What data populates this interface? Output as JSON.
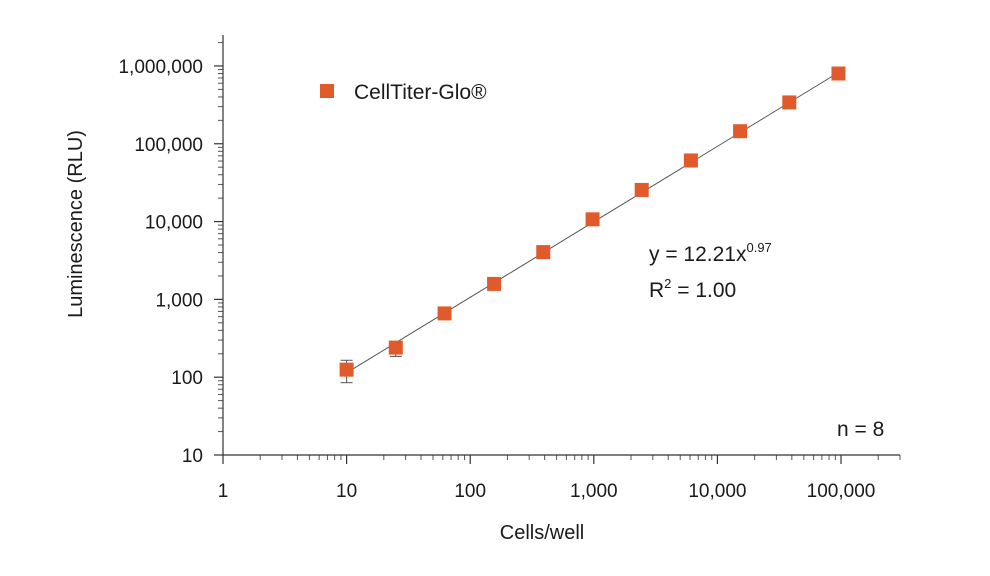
{
  "chart_data": {
    "type": "scatter",
    "x_scale": "log",
    "y_scale": "log",
    "xlabel": "Cells/well",
    "ylabel": "Luminescence (RLU)",
    "xlim": [
      1,
      300000
    ],
    "ylim": [
      10,
      2500000
    ],
    "x_ticks": [
      1,
      10,
      100,
      1000,
      10000,
      100000
    ],
    "x_tick_labels": [
      "1",
      "10",
      "100",
      "1,000",
      "10,000",
      "100,000"
    ],
    "y_ticks": [
      10,
      100,
      1000,
      10000,
      100000,
      1000000
    ],
    "y_tick_labels": [
      "10",
      "100",
      "1,000",
      "10,000",
      "100,000",
      "1,000,000"
    ],
    "series": [
      {
        "name": "CellTiter-Glo®",
        "color": "#e05a2b",
        "marker": "square",
        "x": [
          10,
          25,
          62,
          156,
          390,
          977,
          2441,
          6103,
          15259,
          38147,
          95367
        ],
        "y": [
          125,
          240,
          660,
          1580,
          4050,
          10700,
          25500,
          61000,
          145000,
          340000,
          800000
        ],
        "y_err_low": [
          85,
          185,
          620,
          1500,
          3900,
          10300,
          24600,
          59000,
          141000,
          330000,
          780000
        ],
        "y_err_high": [
          165,
          250,
          700,
          1660,
          4200,
          11100,
          26400,
          63000,
          149000,
          350000,
          820000
        ]
      }
    ],
    "fit": {
      "type": "power",
      "coefficient": 12.21,
      "exponent": 0.97,
      "x_range": [
        10,
        95367
      ],
      "color": "#555555"
    },
    "annotations": {
      "equation_prefix": "y = 12.21x",
      "equation_exponent": "0.97",
      "r2_prefix": "R",
      "r2_superscript": "2",
      "r2_suffix": " = 1.00",
      "n_label": "n = 8"
    },
    "legend": {
      "position": "top-left",
      "label": "CellTiter-Glo®"
    }
  }
}
